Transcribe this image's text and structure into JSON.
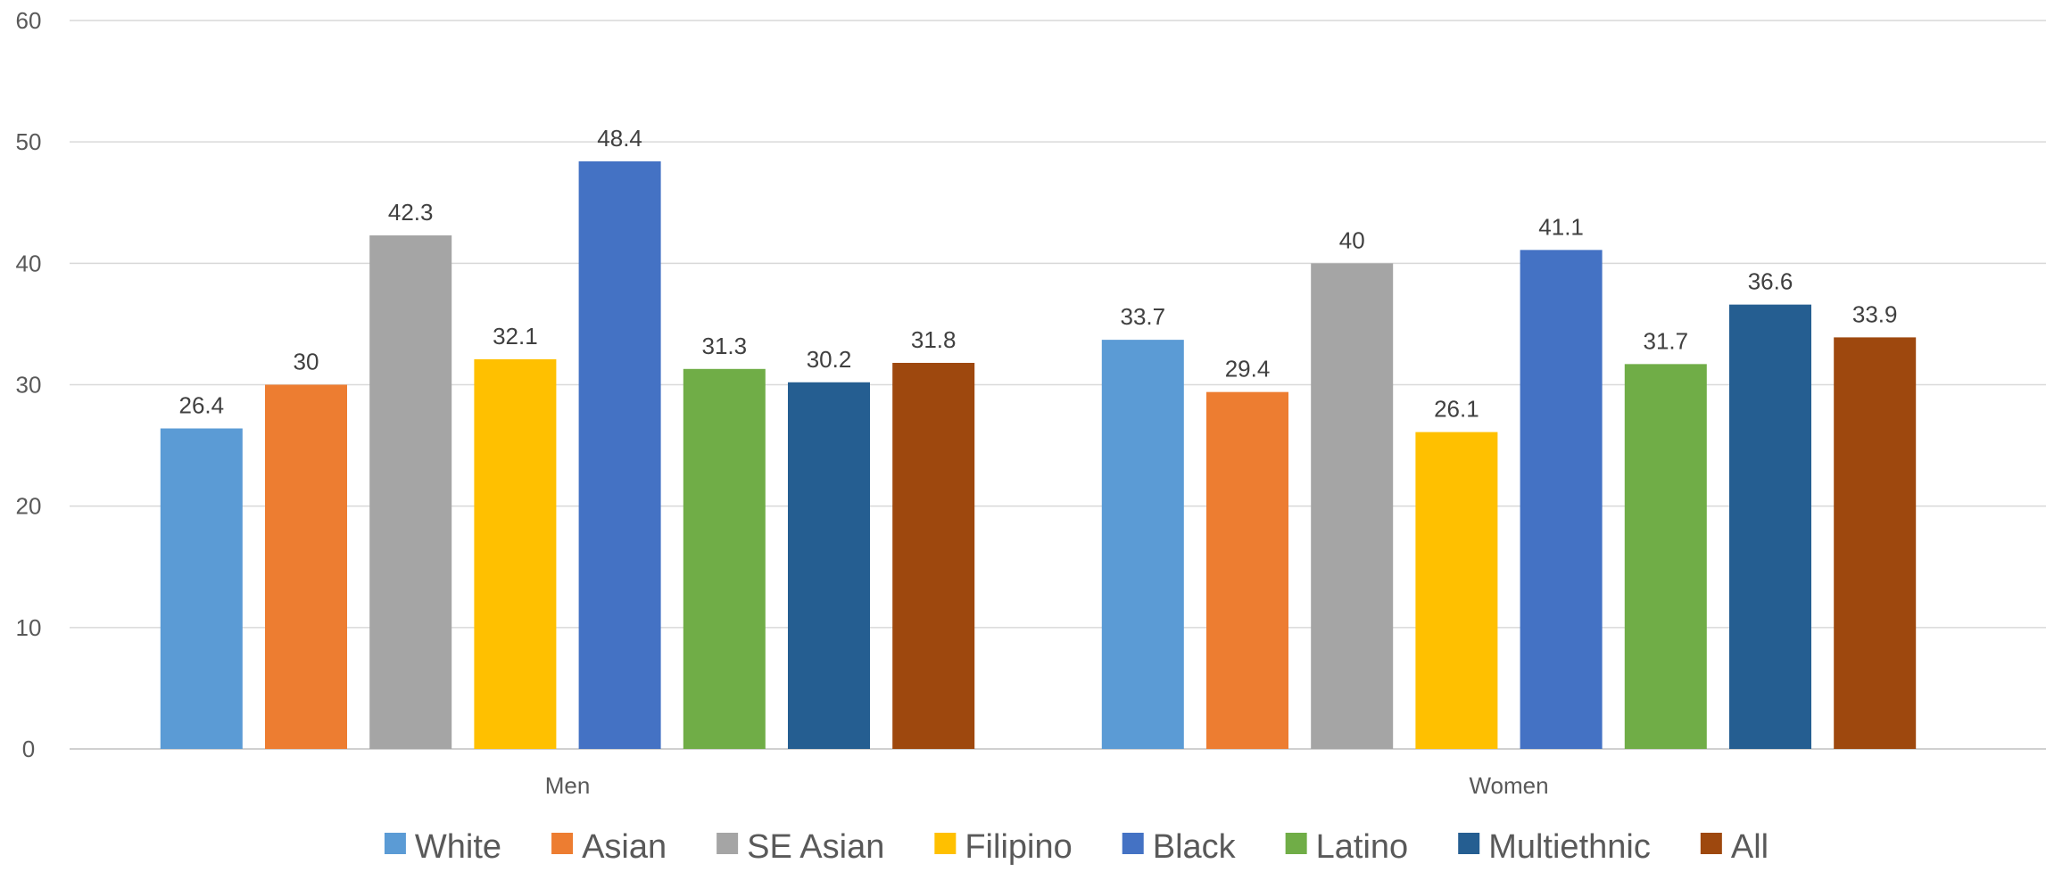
{
  "chart_data": {
    "type": "bar",
    "title": "",
    "xlabel": "",
    "ylabel": "",
    "categories": [
      "Men",
      "Women"
    ],
    "ylim": [
      0,
      60
    ],
    "yticks": [
      0,
      10,
      20,
      30,
      40,
      50,
      60
    ],
    "grid": true,
    "legend_position": "bottom",
    "series": [
      {
        "name": "White",
        "values": [
          26.4,
          33.7
        ],
        "color": "#5B9BD5"
      },
      {
        "name": "Asian",
        "values": [
          30,
          29.4
        ],
        "color": "#ED7D31"
      },
      {
        "name": "SE Asian",
        "values": [
          42.3,
          40
        ],
        "color": "#A5A5A5"
      },
      {
        "name": "Filipino",
        "values": [
          32.1,
          26.1
        ],
        "color": "#FFC000"
      },
      {
        "name": "Black",
        "values": [
          48.4,
          41.1
        ],
        "color": "#4472C4"
      },
      {
        "name": "Latino",
        "values": [
          31.3,
          31.7
        ],
        "color": "#70AD47"
      },
      {
        "name": "Multiethnic",
        "values": [
          30.2,
          36.6
        ],
        "color": "#255E91"
      },
      {
        "name": "All",
        "values": [
          31.8,
          33.9
        ],
        "color": "#9E480E"
      }
    ]
  }
}
